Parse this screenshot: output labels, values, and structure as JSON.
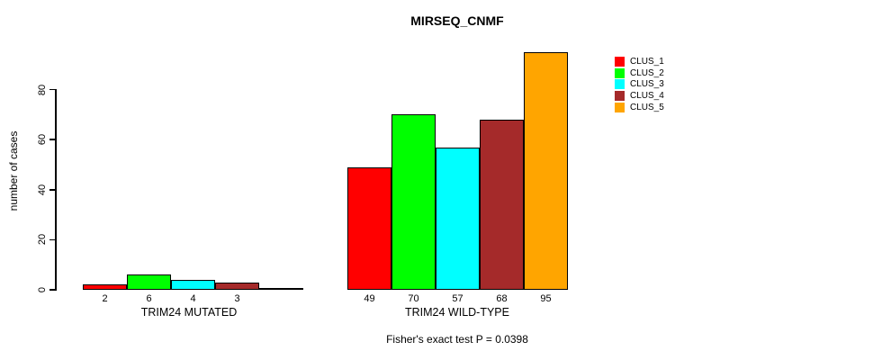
{
  "title": "MIRSEQ_CNMF",
  "chart_data": {
    "type": "bar",
    "title": "MIRSEQ_CNMF",
    "ylabel": "number of cases",
    "xlabel": "",
    "ylim": [
      0,
      80
    ],
    "yticks": [
      0,
      20,
      40,
      60,
      80
    ],
    "grid": false,
    "legend_position": "right-top",
    "legend": [
      {
        "label": "CLUS_1",
        "color": "#FF0000"
      },
      {
        "label": "CLUS_2",
        "color": "#00FF00"
      },
      {
        "label": "CLUS_3",
        "color": "#00FFFF"
      },
      {
        "label": "CLUS_4",
        "color": "#A52A2A"
      },
      {
        "label": "CLUS_5",
        "color": "#FFA500"
      }
    ],
    "groups": [
      {
        "label": "TRIM24 MUTATED",
        "series": [
          "CLUS_1",
          "CLUS_2",
          "CLUS_3",
          "CLUS_4",
          "CLUS_5"
        ],
        "values": [
          2,
          6,
          4,
          3,
          0
        ],
        "value_labels": [
          "2",
          "6",
          "4",
          "3",
          ""
        ]
      },
      {
        "label": "TRIM24 WILD-TYPE",
        "series": [
          "CLUS_1",
          "CLUS_2",
          "CLUS_3",
          "CLUS_4",
          "CLUS_5"
        ],
        "values": [
          49,
          70,
          57,
          68,
          95
        ],
        "value_labels": [
          "49",
          "70",
          "57",
          "68",
          "95"
        ]
      }
    ],
    "annotation": "Fisher's exact test P = 0.0398"
  }
}
